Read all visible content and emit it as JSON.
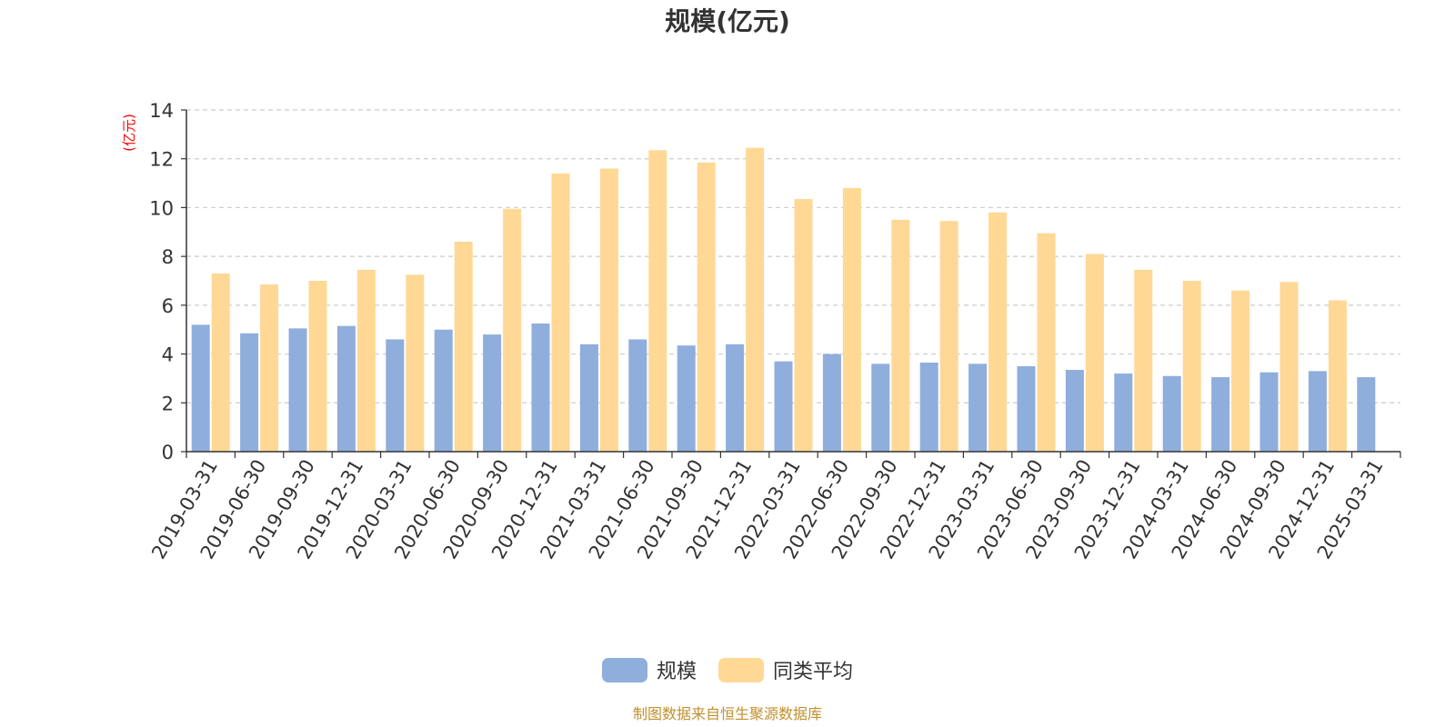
{
  "chart_data": {
    "type": "bar",
    "title": "规模(亿元)",
    "ylabel": "(亿元)",
    "ylim": [
      0,
      14
    ],
    "yticks": [
      0,
      2,
      4,
      6,
      8,
      10,
      12,
      14
    ],
    "grid": true,
    "legend_position": "bottom-center",
    "categories": [
      "2019-03-31",
      "2019-06-30",
      "2019-09-30",
      "2019-12-31",
      "2020-03-31",
      "2020-06-30",
      "2020-09-30",
      "2020-12-31",
      "2021-03-31",
      "2021-06-30",
      "2021-09-30",
      "2021-12-31",
      "2022-03-31",
      "2022-06-30",
      "2022-09-30",
      "2022-12-31",
      "2023-03-31",
      "2023-06-30",
      "2023-09-30",
      "2023-12-31",
      "2024-03-31",
      "2024-06-30",
      "2024-09-30",
      "2024-12-31",
      "2025-03-31"
    ],
    "series": [
      {
        "name": "规模",
        "color": "#8faedc",
        "values": [
          5.2,
          4.85,
          5.05,
          5.15,
          4.6,
          5.0,
          4.8,
          5.25,
          4.4,
          4.6,
          4.35,
          4.4,
          3.7,
          4.0,
          3.6,
          3.65,
          3.6,
          3.5,
          3.35,
          3.2,
          3.1,
          3.05,
          3.25,
          3.3,
          3.05
        ]
      },
      {
        "name": "同类平均",
        "color": "#ffd896",
        "values": [
          7.3,
          6.85,
          7.0,
          7.45,
          7.25,
          8.6,
          9.95,
          11.4,
          11.6,
          12.35,
          11.85,
          12.45,
          10.35,
          10.8,
          9.5,
          9.45,
          9.8,
          8.95,
          8.1,
          7.45,
          7.0,
          6.6,
          6.95,
          6.2,
          null
        ]
      }
    ],
    "source": "制图数据来自恒生聚源数据库"
  }
}
